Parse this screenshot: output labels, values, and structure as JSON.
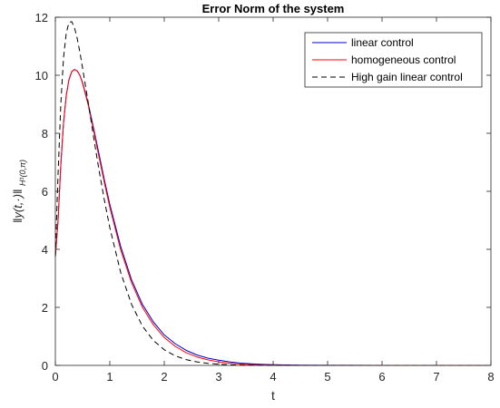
{
  "chart_data": {
    "type": "line",
    "title": "Error Norm of the system",
    "xlabel": "t",
    "ylabel": "‖y(t,·)‖",
    "ylabel_subscript": "H¹(0,π)",
    "xlim": [
      0,
      8
    ],
    "ylim": [
      0,
      12
    ],
    "xticks": [
      "0",
      "1",
      "2",
      "3",
      "4",
      "5",
      "6",
      "7",
      "8"
    ],
    "yticks": [
      "0",
      "2",
      "4",
      "6",
      "8",
      "10",
      "12"
    ],
    "grid": false,
    "legend_position": "top-right",
    "series": [
      {
        "name": "linear control",
        "color": "#0000cc",
        "dash": "solid",
        "x": [
          0,
          0.05,
          0.1,
          0.15,
          0.2,
          0.25,
          0.3,
          0.35,
          0.4,
          0.45,
          0.5,
          0.6,
          0.7,
          0.8,
          0.9,
          1.0,
          1.2,
          1.4,
          1.6,
          1.8,
          2.0,
          2.2,
          2.4,
          2.6,
          2.8,
          3.0,
          3.2,
          3.4,
          3.6,
          3.8,
          4.0,
          4.5,
          5,
          6,
          7,
          8
        ],
        "y": [
          3.75,
          5.0,
          6.9,
          8.35,
          9.3,
          9.85,
          10.12,
          10.2,
          10.15,
          10.0,
          9.75,
          9.05,
          8.2,
          7.3,
          6.4,
          5.55,
          4.1,
          2.95,
          2.1,
          1.5,
          1.05,
          0.75,
          0.52,
          0.36,
          0.25,
          0.18,
          0.12,
          0.08,
          0.055,
          0.037,
          0.025,
          0.008,
          0.003,
          0.0005,
          0.0001,
          0
        ]
      },
      {
        "name": "homogeneous control",
        "color": "#ff0000",
        "dash": "solid",
        "x": [
          0,
          0.05,
          0.1,
          0.15,
          0.2,
          0.25,
          0.3,
          0.35,
          0.4,
          0.45,
          0.5,
          0.6,
          0.7,
          0.8,
          0.9,
          1.0,
          1.2,
          1.4,
          1.6,
          1.8,
          2.0,
          2.2,
          2.4,
          2.6,
          2.8,
          3.0,
          3.2,
          3.4,
          3.6,
          3.8,
          4.0,
          4.5,
          5,
          6,
          7,
          8
        ],
        "y": [
          3.75,
          5.0,
          6.9,
          8.35,
          9.3,
          9.85,
          10.12,
          10.2,
          10.15,
          10.0,
          9.72,
          9.0,
          8.12,
          7.2,
          6.3,
          5.45,
          3.98,
          2.85,
          2.0,
          1.4,
          0.96,
          0.66,
          0.44,
          0.29,
          0.19,
          0.12,
          0.075,
          0.045,
          0.027,
          0.015,
          0.008,
          0.002,
          0.0005,
          0,
          0,
          0
        ]
      },
      {
        "name": "High gain linear control",
        "color": "#000000",
        "dash": "dashed",
        "x": [
          0,
          0.05,
          0.1,
          0.15,
          0.2,
          0.25,
          0.3,
          0.35,
          0.4,
          0.45,
          0.5,
          0.6,
          0.7,
          0.8,
          0.9,
          1.0,
          1.2,
          1.4,
          1.6,
          1.8,
          2.0,
          2.2,
          2.4,
          2.6,
          2.8,
          3.0,
          3.2,
          3.4,
          3.6,
          3.8,
          4.0,
          4.5,
          5,
          6,
          7,
          8
        ],
        "y": [
          3.75,
          6.6,
          9.0,
          10.6,
          11.45,
          11.82,
          11.85,
          11.65,
          11.28,
          10.8,
          10.25,
          9.1,
          7.9,
          6.75,
          5.7,
          4.75,
          3.2,
          2.1,
          1.35,
          0.86,
          0.54,
          0.33,
          0.2,
          0.12,
          0.07,
          0.04,
          0.022,
          0.012,
          0.006,
          0.003,
          0.0015,
          0.0003,
          0.0001,
          0,
          0,
          0
        ]
      }
    ]
  }
}
